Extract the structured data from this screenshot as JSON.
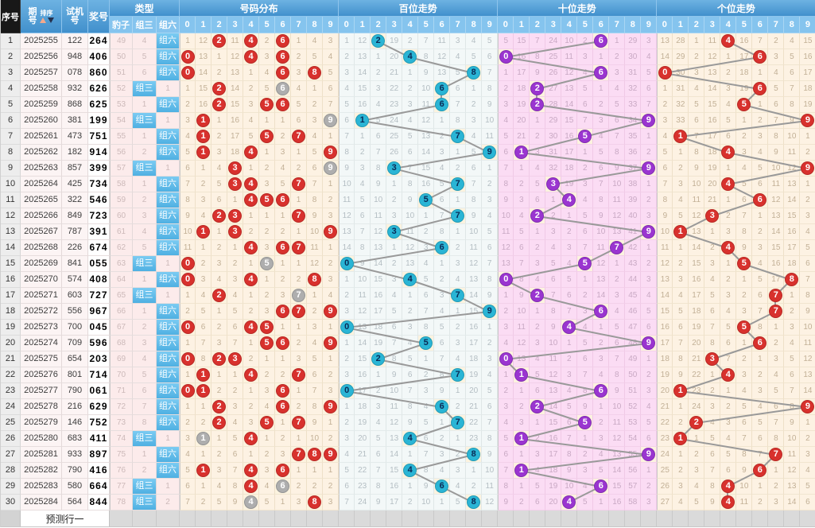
{
  "header": {
    "seq": "序号",
    "period": "期号",
    "period_lines": [
      "期",
      "号"
    ],
    "sort": "排序",
    "test": "试机号",
    "test_lines": [
      "试机",
      "号"
    ],
    "prize": "奖号",
    "type_group": "类型",
    "type_cols": [
      "豹子",
      "组三",
      "组六"
    ],
    "sections": [
      {
        "key": "dist",
        "title": "号码分布"
      },
      {
        "key": "bai",
        "title": "百位走势"
      },
      {
        "key": "shi",
        "title": "十位走势"
      },
      {
        "key": "ge",
        "title": "个位走势"
      }
    ],
    "digits": [
      "0",
      "1",
      "2",
      "3",
      "4",
      "5",
      "6",
      "7",
      "8",
      "9"
    ]
  },
  "colors": {
    "header_blue": "#4190cc",
    "header_blue_light": "#85c4ee",
    "header_black": "#181818",
    "sort_arrow_up": "#f3a98c",
    "sort_arrow_down": "#24304d",
    "type_highlight": "#5cbce9",
    "circle_red": "#d8312d",
    "circle_gray": "#aeaeae",
    "circle_cyan": "#2ab5d5",
    "circle_cyan_text": "#0a2a55",
    "circle_purple": "#9a35d0",
    "trend_line": "#999999",
    "bg_dist": "#fdf2e3",
    "bg_bai": "#f3f8f8",
    "bg_shi": "#fbdcf4",
    "bg_ge": "#fdf2e3",
    "bg_hit_cell": "#fcf3df",
    "bg_left_pink": "#fcf4f4",
    "bg_type_pink": "#fcebeb",
    "bg_seq": "#ededed",
    "footer_bg": "#dadada"
  },
  "trend": {
    "note": "Each digit column shows the running miss count (previous value + 1 per row); when the digit is drawn, a circled digit is shown and the counter resets. Distribution circles: red = digit appears once in prize, gray = digit appears twice (组三). Trend circles: 百位 cyan, 十位 purple, 个位 red.",
    "initial_miss": {
      "dist": [
        0,
        11,
        0,
        10,
        0,
        1,
        0,
        0,
        3,
        2
      ],
      "bai": [
        0,
        11,
        0,
        18,
        1,
        6,
        10,
        2,
        3,
        4
      ],
      "shi": [
        4,
        14,
        6,
        23,
        9,
        1,
        0,
        0,
        28,
        2
      ],
      "ge": [
        12,
        27,
        0,
        10,
        0,
        15,
        6,
        1,
        3,
        14
      ]
    }
  },
  "rows": [
    {
      "seq": 1,
      "period": "2025255",
      "test": "122",
      "prize": "264",
      "baozi": "49",
      "zu3": "4",
      "zu6": "组六"
    },
    {
      "seq": 2,
      "period": "2025256",
      "test": "948",
      "prize": "406",
      "baozi": "50",
      "zu3": "5",
      "zu6": "组六"
    },
    {
      "seq": 3,
      "period": "2025257",
      "test": "078",
      "prize": "860",
      "baozi": "51",
      "zu3": "6",
      "zu6": "组六"
    },
    {
      "seq": 4,
      "period": "2025258",
      "test": "932",
      "prize": "626",
      "baozi": "52",
      "zu3": "组三",
      "zu6": "1"
    },
    {
      "seq": 5,
      "period": "2025259",
      "test": "868",
      "prize": "625",
      "baozi": "53",
      "zu3": "1",
      "zu6": "组六"
    },
    {
      "seq": 6,
      "period": "2025260",
      "test": "381",
      "prize": "199",
      "baozi": "54",
      "zu3": "组三",
      "zu6": "1"
    },
    {
      "seq": 7,
      "period": "2025261",
      "test": "473",
      "prize": "751",
      "baozi": "55",
      "zu3": "1",
      "zu6": "组六"
    },
    {
      "seq": 8,
      "period": "2025262",
      "test": "182",
      "prize": "914",
      "baozi": "56",
      "zu3": "2",
      "zu6": "组六"
    },
    {
      "seq": 9,
      "period": "2025263",
      "test": "857",
      "prize": "399",
      "baozi": "57",
      "zu3": "组三",
      "zu6": "1"
    },
    {
      "seq": 10,
      "period": "2025264",
      "test": "425",
      "prize": "734",
      "baozi": "58",
      "zu3": "1",
      "zu6": "组六"
    },
    {
      "seq": 11,
      "period": "2025265",
      "test": "322",
      "prize": "546",
      "baozi": "59",
      "zu3": "2",
      "zu6": "组六"
    },
    {
      "seq": 12,
      "period": "2025266",
      "test": "849",
      "prize": "723",
      "baozi": "60",
      "zu3": "3",
      "zu6": "组六"
    },
    {
      "seq": 13,
      "period": "2025267",
      "test": "787",
      "prize": "391",
      "baozi": "61",
      "zu3": "4",
      "zu6": "组六"
    },
    {
      "seq": 14,
      "period": "2025268",
      "test": "226",
      "prize": "674",
      "baozi": "62",
      "zu3": "5",
      "zu6": "组六"
    },
    {
      "seq": 15,
      "period": "2025269",
      "test": "841",
      "prize": "055",
      "baozi": "63",
      "zu3": "组三",
      "zu6": "1"
    },
    {
      "seq": 16,
      "period": "2025270",
      "test": "574",
      "prize": "408",
      "baozi": "64",
      "zu3": "1",
      "zu6": "组六"
    },
    {
      "seq": 17,
      "period": "2025271",
      "test": "603",
      "prize": "727",
      "baozi": "65",
      "zu3": "组三",
      "zu6": "1"
    },
    {
      "seq": 18,
      "period": "2025272",
      "test": "556",
      "prize": "967",
      "baozi": "66",
      "zu3": "1",
      "zu6": "组六"
    },
    {
      "seq": 19,
      "period": "2025273",
      "test": "700",
      "prize": "045",
      "baozi": "67",
      "zu3": "2",
      "zu6": "组六"
    },
    {
      "seq": 20,
      "period": "2025274",
      "test": "709",
      "prize": "596",
      "baozi": "68",
      "zu3": "3",
      "zu6": "组六"
    },
    {
      "seq": 21,
      "period": "2025275",
      "test": "654",
      "prize": "203",
      "baozi": "69",
      "zu3": "4",
      "zu6": "组六"
    },
    {
      "seq": 22,
      "period": "2025276",
      "test": "801",
      "prize": "714",
      "baozi": "70",
      "zu3": "5",
      "zu6": "组六"
    },
    {
      "seq": 23,
      "period": "2025277",
      "test": "790",
      "prize": "061",
      "baozi": "71",
      "zu3": "6",
      "zu6": "组六"
    },
    {
      "seq": 24,
      "period": "2025278",
      "test": "216",
      "prize": "629",
      "baozi": "72",
      "zu3": "7",
      "zu6": "组六"
    },
    {
      "seq": 25,
      "period": "2025279",
      "test": "146",
      "prize": "752",
      "baozi": "73",
      "zu3": "8",
      "zu6": "组六"
    },
    {
      "seq": 26,
      "period": "2025280",
      "test": "683",
      "prize": "411",
      "baozi": "74",
      "zu3": "组三",
      "zu6": "1"
    },
    {
      "seq": 27,
      "period": "2025281",
      "test": "933",
      "prize": "897",
      "baozi": "75",
      "zu3": "1",
      "zu6": "组六"
    },
    {
      "seq": 28,
      "period": "2025282",
      "test": "790",
      "prize": "416",
      "baozi": "76",
      "zu3": "2",
      "zu6": "组六"
    },
    {
      "seq": 29,
      "period": "2025283",
      "test": "580",
      "prize": "664",
      "baozi": "77",
      "zu3": "组三",
      "zu6": "1"
    },
    {
      "seq": 30,
      "period": "2025284",
      "test": "564",
      "prize": "844",
      "baozi": "78",
      "zu3": "组三",
      "zu6": "2"
    }
  ],
  "footer": {
    "label": "预测行一"
  }
}
